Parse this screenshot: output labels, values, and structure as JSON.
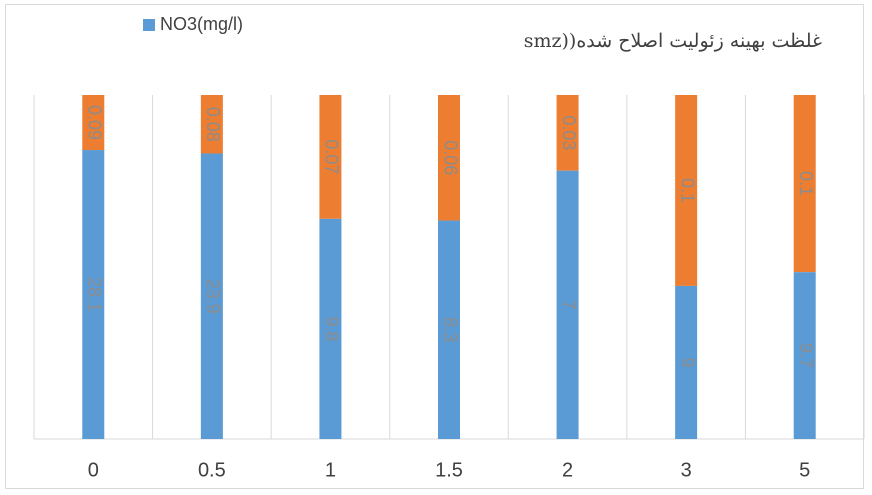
{
  "chart_data": {
    "type": "bar",
    "stacked": true,
    "normalized": true,
    "title": "غلظت بهینه زئولیت اصلاح شده((smz",
    "categories": [
      "0",
      "0.5",
      "1",
      "1.5",
      "2",
      "3",
      "5"
    ],
    "series": [
      {
        "name": "NO3(mg/l)",
        "color": "#5b9bd5",
        "values": [
          28.1,
          23.9,
          9.8,
          8.3,
          7,
          9,
          9.7
        ],
        "labels": [
          "28.1",
          "23.9",
          "9.8",
          "8.3",
          "7",
          "9",
          "9.7"
        ]
      },
      {
        "name": "",
        "color": "#ed7d31",
        "values": [
          0.09,
          0.08,
          0.07,
          0.06,
          0.03,
          0.1,
          0.1
        ],
        "labels": [
          "0.09",
          "0.08",
          "0.07",
          "0.06",
          "0.03",
          "0.1",
          "0.1"
        ],
        "fractions": [
          0.16,
          0.17,
          0.36,
          0.365,
          0.22,
          0.555,
          0.515
        ]
      }
    ],
    "legend": "top-left",
    "grid": true,
    "data_labels": true
  }
}
